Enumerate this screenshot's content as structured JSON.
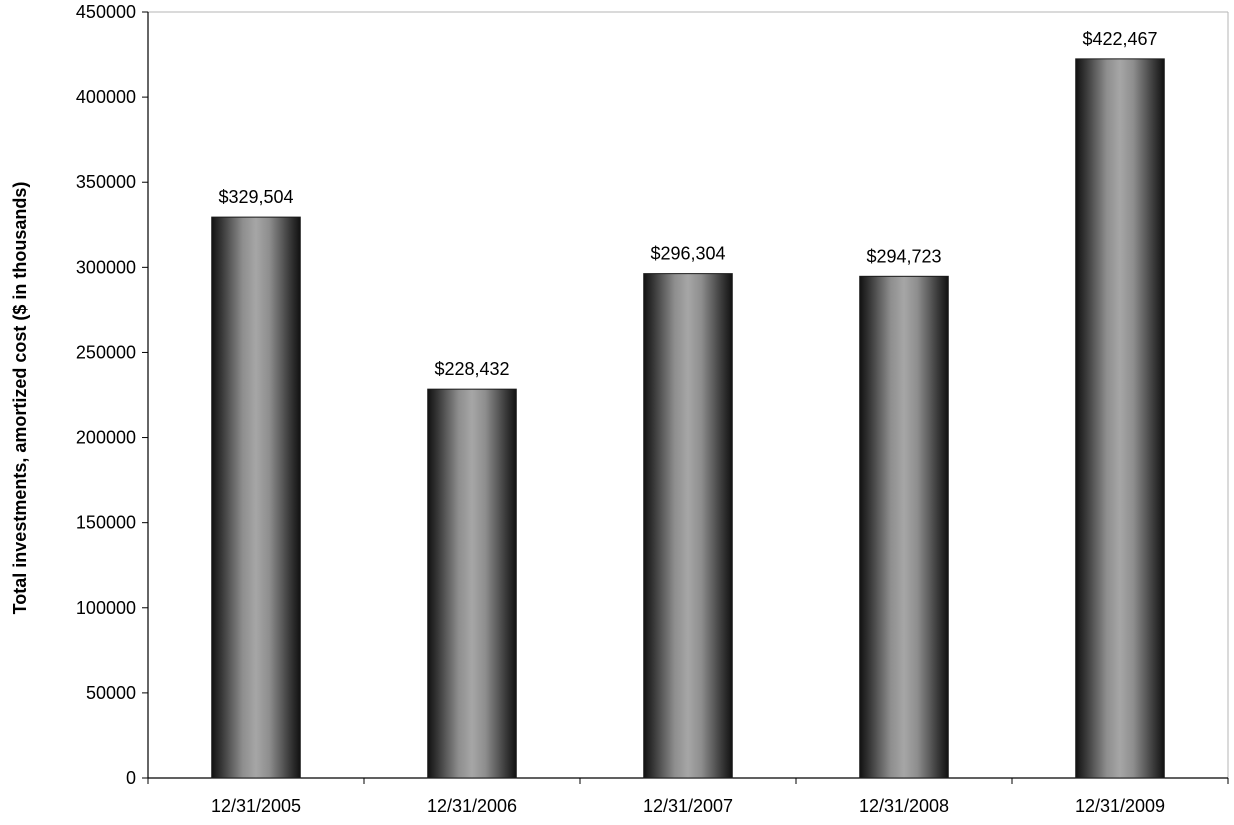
{
  "chart_data": {
    "type": "bar",
    "categories": [
      "12/31/2005",
      "12/31/2006",
      "12/31/2007",
      "12/31/2008",
      "12/31/2009"
    ],
    "values": [
      329504,
      228432,
      296304,
      294723,
      422467
    ],
    "data_labels": [
      "$329,504",
      "$228,432",
      "$296,304",
      "$294,723",
      "$422,467"
    ],
    "title": "",
    "xlabel": "",
    "ylabel": "Total investments, amortized cost ($ in thousands)",
    "ylim": [
      0,
      450000
    ],
    "yticks": [
      0,
      50000,
      100000,
      150000,
      200000,
      250000,
      300000,
      350000,
      400000,
      450000
    ],
    "ytick_labels": [
      "0",
      "50000",
      "100000",
      "150000",
      "200000",
      "250000",
      "300000",
      "350000",
      "400000",
      "450000"
    ],
    "grid": false,
    "legend": "none",
    "bar_color": "#8a8a8a",
    "bar_edge_color": "#1a1a1a"
  }
}
